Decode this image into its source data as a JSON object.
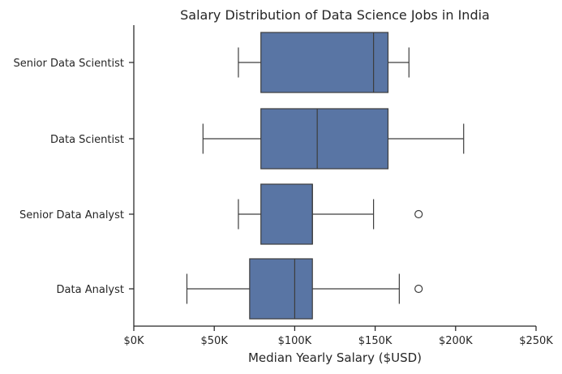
{
  "chart_data": {
    "type": "boxplot",
    "orientation": "horizontal",
    "title": "Salary Distribution of Data Science Jobs in India",
    "xlabel": "Median Yearly Salary ($USD)",
    "ylabel": "",
    "xlim": [
      0,
      250000
    ],
    "xticks": [
      0,
      50000,
      100000,
      150000,
      200000,
      250000
    ],
    "xtick_labels": [
      "$0K",
      "$50K",
      "$100K",
      "$150K",
      "$200K",
      "$250K"
    ],
    "grid": false,
    "box_color": "#5975a4",
    "line_color": "#3d3d3d",
    "categories": [
      "Senior Data Scientist",
      "Data Scientist",
      "Senior Data Analyst",
      "Data Analyst"
    ],
    "boxes": [
      {
        "category": "Senior Data Scientist",
        "whisker_low": 65000,
        "q1": 79000,
        "median": 149000,
        "q3": 158000,
        "whisker_high": 171000,
        "outliers": []
      },
      {
        "category": "Data Scientist",
        "whisker_low": 43000,
        "q1": 79000,
        "median": 114000,
        "q3": 158000,
        "whisker_high": 205000,
        "outliers": []
      },
      {
        "category": "Senior Data Analyst",
        "whisker_low": 65000,
        "q1": 79000,
        "median": 111000,
        "q3": 111000,
        "whisker_high": 149000,
        "outliers": [
          177000
        ]
      },
      {
        "category": "Data Analyst",
        "whisker_low": 33000,
        "q1": 72000,
        "median": 100000,
        "q3": 111000,
        "whisker_high": 165000,
        "outliers": [
          177000
        ]
      }
    ]
  }
}
